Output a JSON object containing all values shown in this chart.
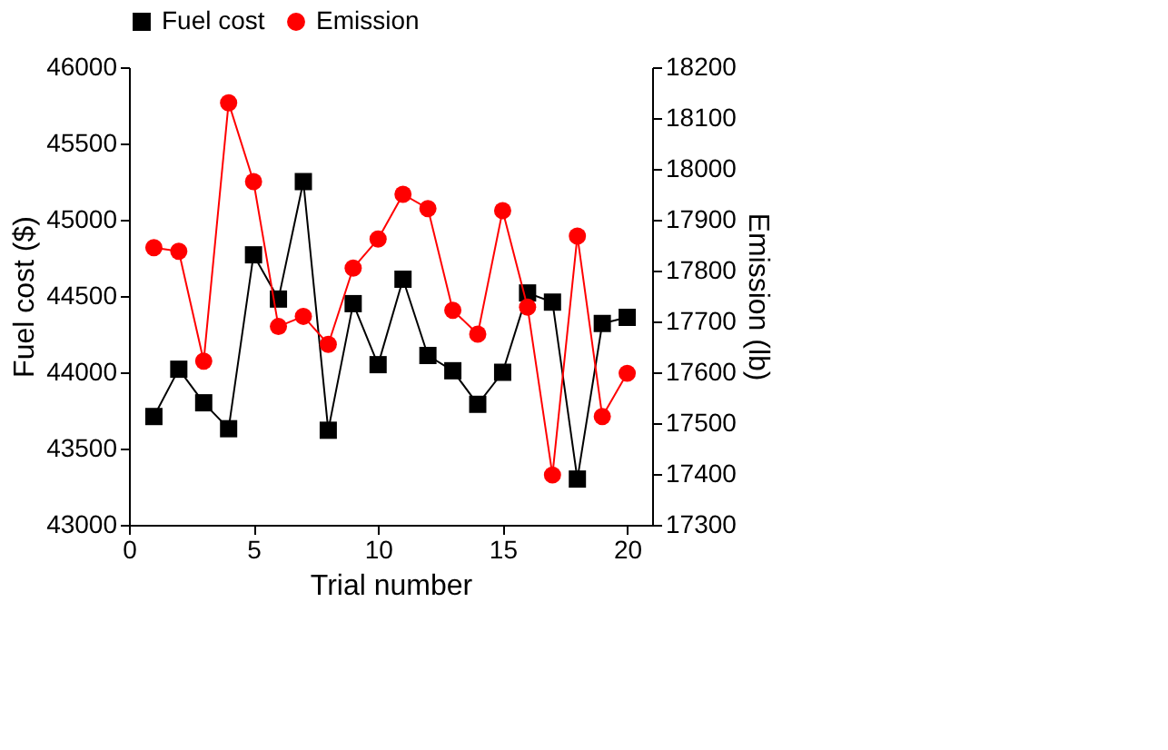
{
  "chart_data": {
    "type": "line",
    "xlabel": "Trial number",
    "ylabel": "Fuel cost ($)",
    "y2label": "Emission (lb)",
    "x": [
      1,
      2,
      3,
      4,
      5,
      6,
      7,
      8,
      9,
      10,
      11,
      12,
      13,
      14,
      15,
      16,
      17,
      18,
      19,
      20
    ],
    "xlim": [
      0,
      21
    ],
    "xticks": [
      0,
      5,
      10,
      15,
      20
    ],
    "ylim": [
      43000,
      46000
    ],
    "yticks": [
      43000,
      43500,
      44000,
      44500,
      45000,
      45500,
      46000
    ],
    "y2lim": [
      17300,
      18200
    ],
    "y2ticks": [
      17300,
      17400,
      17500,
      17600,
      17700,
      17800,
      17900,
      18000,
      18100,
      18200
    ],
    "legend": "top",
    "grid": false,
    "series": [
      {
        "name": "Fuel cost",
        "color": "#000000",
        "marker": "square",
        "values": [
          43710,
          44020,
          43800,
          43630,
          44770,
          44480,
          45250,
          43620,
          44450,
          44050,
          44610,
          44110,
          44010,
          43790,
          44000,
          44520,
          44460,
          43300,
          44320,
          44360
        ]
      },
      {
        "name": "Emission",
        "color": "#ff0000",
        "marker": "circle",
        "axis": "y2",
        "values": [
          17845,
          17838,
          17622,
          18130,
          17975,
          17690,
          17710,
          17655,
          17805,
          17862,
          17950,
          17922,
          17722,
          17675,
          17918,
          17728,
          17398,
          17868,
          17513,
          17598
        ]
      }
    ]
  }
}
